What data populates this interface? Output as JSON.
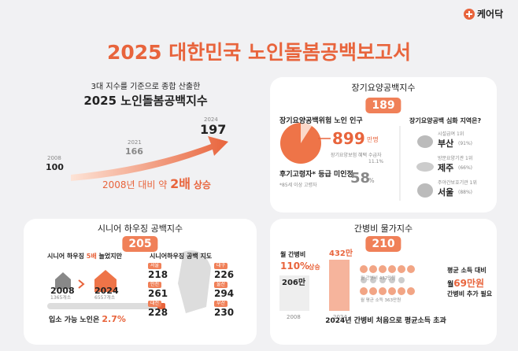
{
  "logo": "케어닥",
  "title": "2025 대한민국 노인돌봄공백보고서",
  "overall": {
    "subtitle": "3대 지수를 기준으로 종합 산출한",
    "title": "2025 노인돌봄공백지수",
    "points": [
      {
        "year": "2008",
        "value": 100
      },
      {
        "year": "2021",
        "value": 166
      },
      {
        "year": "2024",
        "value": 197
      }
    ],
    "summary": {
      "prefix": "2008년 대비 약",
      "emphasis": "2배",
      "suffix": "상승"
    }
  },
  "longterm": {
    "title": "장기요양공백지수",
    "index": 189,
    "risk_label": "장기요양공백위험 노인 인구",
    "risk_value": 899,
    "risk_unit": "만명",
    "beneficiary_label": "장기요양보험 혜택 수급자",
    "beneficiary_value": "11.1%",
    "unrecognized_label": "후기고령자* 등급 미인정",
    "unrecognized_value": 58,
    "unrecognized_unit": "%",
    "footnote": "*85세 이상 고령자",
    "regions_title": "장기요양공백 심화 지역은?",
    "regions": [
      {
        "category": "시설급여 1위",
        "name": "부산",
        "rate": "(91%)"
      },
      {
        "category": "방문요양기관 1위",
        "name": "제주",
        "rate": "(66%)"
      },
      {
        "category": "주야간보호기관 1위",
        "name": "서울",
        "rate": "(88%)"
      }
    ]
  },
  "housing": {
    "title": "시니어 하우징 공백지수",
    "index": 205,
    "headline": {
      "prefix": "시니어 하우징",
      "emphasis": "5배",
      "suffix": "늘었지만"
    },
    "before": {
      "year": "2008",
      "count": "1365개소"
    },
    "after": {
      "year": "2024",
      "count": "6557개소"
    },
    "note": {
      "prefix": "입소 가능 노인은",
      "emphasis": "2.7%"
    },
    "map_title": "시니어하우징 공백 지도",
    "regions": [
      {
        "name": "서울",
        "value": 218
      },
      {
        "name": "인천",
        "value": 261
      },
      {
        "name": "대전",
        "value": 228
      },
      {
        "name": "대구",
        "value": 226
      },
      {
        "name": "울산",
        "value": 294
      },
      {
        "name": "부산",
        "value": 230
      }
    ]
  },
  "care_cost": {
    "title": "간병비 물가지수",
    "index": 210,
    "label": "월 간병비",
    "increase": "110%",
    "increase_suffix": "상승",
    "before": {
      "year": "2008",
      "value": "206만"
    },
    "after": {
      "year": "2024",
      "value": "432만"
    },
    "legend_cost": "월 간병비 432만원",
    "legend_income": "월 평균 소득 363만원",
    "gap_label": "평균 소득 대비",
    "gap_prefix": "월",
    "gap_value": "69만원",
    "gap_suffix": "간병비 추가 필요",
    "footer": "2024년 간병비 처음으로 평균소득 초과"
  }
}
